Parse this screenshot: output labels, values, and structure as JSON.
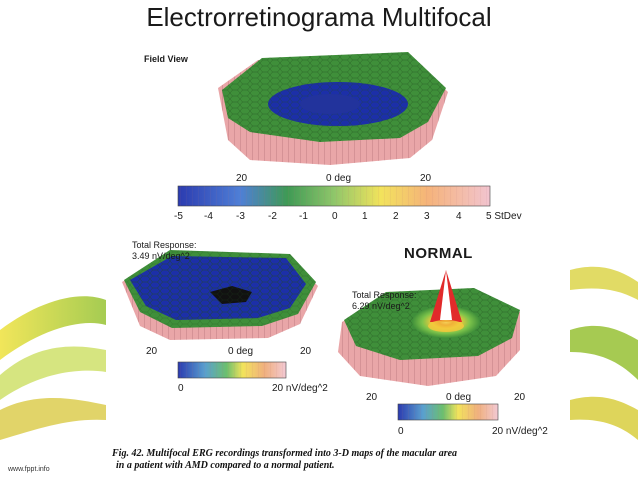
{
  "slide": {
    "title": "Electrorretinograma Multifocal",
    "footer": "www.fppt.info"
  },
  "top_map": {
    "label": "Field View",
    "axis_left": "20",
    "axis_center": "0 deg",
    "axis_right": "20",
    "scale_ticks": [
      "-5",
      "-4",
      "-3",
      "-2",
      "-1",
      "0",
      "1",
      "2",
      "3",
      "4",
      "5 StDev"
    ]
  },
  "amd_map": {
    "response_label": "Total Response:",
    "response_value": "3.49 nV/deg^2",
    "axis_left": "20",
    "axis_center": "0 deg",
    "axis_right": "20",
    "scale_min": "0",
    "scale_max": "20 nV/deg^2"
  },
  "normal_map": {
    "title": "NORMAL",
    "response_label": "Total Response:",
    "response_value": "6.29 nV/deg^2",
    "axis_left": "20",
    "axis_center": "0 deg",
    "axis_right": "20",
    "scale_min": "0",
    "scale_max": "20 nV/deg^2"
  },
  "caption": {
    "line1": "Fig. 42. Multifocal ERG recordings transformed into 3-D maps of the macular area",
    "line2": "in a patient with AMD compared to a normal patient."
  },
  "colors": {
    "green": "#3f8f3a",
    "blue": "#1c2fa8",
    "pink": "#e9a6a8",
    "red": "#d8282b",
    "yellow": "#f2e35c",
    "accent_yellow": "#e3d93a",
    "accent_green": "#8fbf3a"
  }
}
